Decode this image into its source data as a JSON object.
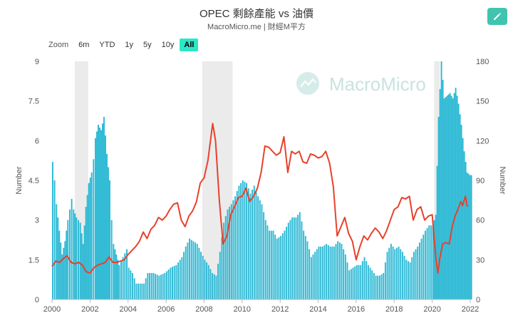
{
  "header": {
    "title": "OPEC 剩餘產能 vs 油價",
    "subtitle": "MacroMicro.me | 財經M平方"
  },
  "toolbar": {
    "zoom_label": "Zoom",
    "ranges": [
      "6m",
      "YTD",
      "1y",
      "5y",
      "10y",
      "All"
    ],
    "active_range": "All",
    "edit_icon": "pencil-icon"
  },
  "watermark": {
    "text": "MacroMicro",
    "icon": "macromicro-logo-icon"
  },
  "colors": {
    "bar": "#2ab8d4",
    "line": "#e8412c",
    "recession": "#ebebeb",
    "accent": "#40c4b0"
  },
  "chart_data": {
    "type": "bar+line",
    "title": "OPEC 剩餘產能 vs 油價",
    "x_ticks": [
      "2000",
      "2002",
      "2004",
      "2006",
      "2008",
      "2010",
      "2012",
      "2014",
      "2016",
      "2018",
      "2020",
      "2022"
    ],
    "x_range": [
      2000,
      2022
    ],
    "y_left": {
      "label": "Number",
      "range": [
        0,
        9
      ],
      "ticks": [
        "0",
        "1.5",
        "3",
        "4.5",
        "6",
        "7.5",
        "9"
      ]
    },
    "y_right": {
      "label": "Number",
      "range": [
        0,
        180
      ],
      "ticks": [
        "0",
        "30",
        "60",
        "90",
        "120",
        "150",
        "180"
      ]
    },
    "recession_shading": [
      [
        2001.2,
        2001.9
      ],
      [
        2007.9,
        2009.5
      ],
      [
        2020.1,
        2020.4
      ]
    ],
    "series": [
      {
        "axis": "left",
        "style": "bar",
        "points": [
          [
            2000.0,
            5.2
          ],
          [
            2000.1,
            4.5
          ],
          [
            2000.2,
            3.6
          ],
          [
            2000.35,
            2.6
          ],
          [
            2000.5,
            1.7
          ],
          [
            2000.65,
            2.2
          ],
          [
            2000.8,
            3.0
          ],
          [
            2001.0,
            3.8
          ],
          [
            2001.1,
            3.4
          ],
          [
            2001.25,
            3.1
          ],
          [
            2001.45,
            2.9
          ],
          [
            2001.6,
            2.1
          ],
          [
            2001.75,
            3.5
          ],
          [
            2001.9,
            4.4
          ],
          [
            2002.05,
            4.8
          ],
          [
            2002.15,
            5.3
          ],
          [
            2002.25,
            6.1
          ],
          [
            2002.4,
            6.6
          ],
          [
            2002.55,
            6.4
          ],
          [
            2002.7,
            6.9
          ],
          [
            2002.85,
            5.5
          ],
          [
            2003.0,
            4.5
          ],
          [
            2003.1,
            3.0
          ],
          [
            2003.2,
            2.1
          ],
          [
            2003.35,
            1.7
          ],
          [
            2003.5,
            1.3
          ],
          [
            2003.7,
            1.6
          ],
          [
            2003.9,
            1.9
          ],
          [
            2004.0,
            1.2
          ],
          [
            2004.2,
            1.0
          ],
          [
            2004.4,
            0.6
          ],
          [
            2004.6,
            0.6
          ],
          [
            2004.8,
            0.6
          ],
          [
            2005.0,
            1.0
          ],
          [
            2005.3,
            1.0
          ],
          [
            2005.6,
            0.9
          ],
          [
            2005.9,
            1.0
          ],
          [
            2006.2,
            1.2
          ],
          [
            2006.5,
            1.3
          ],
          [
            2006.8,
            1.6
          ],
          [
            2007.0,
            2.0
          ],
          [
            2007.2,
            2.3
          ],
          [
            2007.4,
            2.2
          ],
          [
            2007.6,
            2.1
          ],
          [
            2007.8,
            1.8
          ],
          [
            2008.0,
            1.5
          ],
          [
            2008.2,
            1.3
          ],
          [
            2008.4,
            1.0
          ],
          [
            2008.6,
            0.9
          ],
          [
            2008.8,
            1.8
          ],
          [
            2009.0,
            2.9
          ],
          [
            2009.2,
            3.4
          ],
          [
            2009.4,
            3.6
          ],
          [
            2009.6,
            3.9
          ],
          [
            2009.8,
            4.3
          ],
          [
            2010.0,
            4.5
          ],
          [
            2010.2,
            4.4
          ],
          [
            2010.4,
            4.0
          ],
          [
            2010.6,
            4.3
          ],
          [
            2010.8,
            3.9
          ],
          [
            2011.0,
            3.6
          ],
          [
            2011.2,
            3.0
          ],
          [
            2011.4,
            2.6
          ],
          [
            2011.6,
            2.6
          ],
          [
            2011.8,
            2.3
          ],
          [
            2012.0,
            2.4
          ],
          [
            2012.2,
            2.6
          ],
          [
            2012.4,
            2.9
          ],
          [
            2012.6,
            3.1
          ],
          [
            2012.8,
            3.1
          ],
          [
            2013.0,
            3.3
          ],
          [
            2013.2,
            2.6
          ],
          [
            2013.4,
            2.2
          ],
          [
            2013.6,
            1.6
          ],
          [
            2013.8,
            1.8
          ],
          [
            2014.0,
            2.0
          ],
          [
            2014.2,
            2.0
          ],
          [
            2014.4,
            2.1
          ],
          [
            2014.6,
            2.0
          ],
          [
            2014.8,
            2.0
          ],
          [
            2015.0,
            2.2
          ],
          [
            2015.2,
            2.1
          ],
          [
            2015.4,
            1.7
          ],
          [
            2015.6,
            1.1
          ],
          [
            2015.8,
            1.2
          ],
          [
            2016.0,
            1.3
          ],
          [
            2016.2,
            1.3
          ],
          [
            2016.4,
            1.6
          ],
          [
            2016.6,
            1.3
          ],
          [
            2016.8,
            1.1
          ],
          [
            2017.0,
            0.9
          ],
          [
            2017.2,
            0.9
          ],
          [
            2017.4,
            1.0
          ],
          [
            2017.6,
            1.8
          ],
          [
            2017.8,
            2.1
          ],
          [
            2018.0,
            1.9
          ],
          [
            2018.2,
            2.0
          ],
          [
            2018.4,
            1.8
          ],
          [
            2018.6,
            1.5
          ],
          [
            2018.8,
            1.4
          ],
          [
            2019.0,
            1.8
          ],
          [
            2019.2,
            2.0
          ],
          [
            2019.4,
            2.3
          ],
          [
            2019.6,
            2.6
          ],
          [
            2019.8,
            2.8
          ],
          [
            2020.0,
            2.8
          ],
          [
            2020.15,
            3.2
          ],
          [
            2020.3,
            6.9
          ],
          [
            2020.45,
            9.0
          ],
          [
            2020.6,
            7.6
          ],
          [
            2020.75,
            7.7
          ],
          [
            2020.9,
            7.8
          ],
          [
            2021.05,
            7.6
          ],
          [
            2021.2,
            8.0
          ],
          [
            2021.35,
            7.4
          ],
          [
            2021.5,
            6.6
          ],
          [
            2021.65,
            5.6
          ],
          [
            2021.8,
            4.8
          ],
          [
            2021.95,
            4.7
          ]
        ]
      },
      {
        "axis": "right",
        "style": "line",
        "points": [
          [
            2000.0,
            25
          ],
          [
            2000.2,
            29
          ],
          [
            2000.4,
            28
          ],
          [
            2000.6,
            31
          ],
          [
            2000.8,
            33
          ],
          [
            2001.0,
            28
          ],
          [
            2001.2,
            27
          ],
          [
            2001.4,
            28
          ],
          [
            2001.6,
            26
          ],
          [
            2001.8,
            21
          ],
          [
            2002.0,
            20
          ],
          [
            2002.2,
            24
          ],
          [
            2002.4,
            26
          ],
          [
            2002.6,
            27
          ],
          [
            2002.8,
            28
          ],
          [
            2003.0,
            32
          ],
          [
            2003.2,
            28
          ],
          [
            2003.4,
            28
          ],
          [
            2003.6,
            29
          ],
          [
            2003.8,
            30
          ],
          [
            2004.0,
            34
          ],
          [
            2004.2,
            37
          ],
          [
            2004.4,
            40
          ],
          [
            2004.6,
            44
          ],
          [
            2004.8,
            51
          ],
          [
            2005.0,
            46
          ],
          [
            2005.2,
            53
          ],
          [
            2005.4,
            56
          ],
          [
            2005.6,
            62
          ],
          [
            2005.8,
            60
          ],
          [
            2006.0,
            63
          ],
          [
            2006.2,
            68
          ],
          [
            2006.4,
            72
          ],
          [
            2006.6,
            73
          ],
          [
            2006.8,
            60
          ],
          [
            2007.0,
            55
          ],
          [
            2007.2,
            63
          ],
          [
            2007.4,
            67
          ],
          [
            2007.6,
            74
          ],
          [
            2007.8,
            88
          ],
          [
            2008.0,
            92
          ],
          [
            2008.2,
            105
          ],
          [
            2008.45,
            133
          ],
          [
            2008.6,
            120
          ],
          [
            2008.8,
            75
          ],
          [
            2009.0,
            42
          ],
          [
            2009.2,
            48
          ],
          [
            2009.4,
            64
          ],
          [
            2009.6,
            70
          ],
          [
            2009.8,
            77
          ],
          [
            2010.0,
            78
          ],
          [
            2010.2,
            84
          ],
          [
            2010.4,
            74
          ],
          [
            2010.6,
            78
          ],
          [
            2010.8,
            84
          ],
          [
            2011.0,
            96
          ],
          [
            2011.2,
            116
          ],
          [
            2011.4,
            115
          ],
          [
            2011.6,
            112
          ],
          [
            2011.8,
            109
          ],
          [
            2012.0,
            111
          ],
          [
            2012.2,
            123
          ],
          [
            2012.4,
            96
          ],
          [
            2012.6,
            112
          ],
          [
            2012.8,
            110
          ],
          [
            2013.0,
            112
          ],
          [
            2013.2,
            104
          ],
          [
            2013.4,
            103
          ],
          [
            2013.6,
            110
          ],
          [
            2013.8,
            109
          ],
          [
            2014.0,
            107
          ],
          [
            2014.2,
            108
          ],
          [
            2014.4,
            112
          ],
          [
            2014.6,
            103
          ],
          [
            2014.8,
            85
          ],
          [
            2015.0,
            48
          ],
          [
            2015.2,
            55
          ],
          [
            2015.4,
            62
          ],
          [
            2015.6,
            50
          ],
          [
            2015.8,
            44
          ],
          [
            2016.0,
            30
          ],
          [
            2016.2,
            40
          ],
          [
            2016.4,
            48
          ],
          [
            2016.6,
            45
          ],
          [
            2016.8,
            50
          ],
          [
            2017.0,
            54
          ],
          [
            2017.2,
            51
          ],
          [
            2017.4,
            46
          ],
          [
            2017.6,
            52
          ],
          [
            2017.8,
            60
          ],
          [
            2018.0,
            68
          ],
          [
            2018.2,
            70
          ],
          [
            2018.4,
            77
          ],
          [
            2018.6,
            76
          ],
          [
            2018.8,
            78
          ],
          [
            2019.0,
            60
          ],
          [
            2019.2,
            68
          ],
          [
            2019.4,
            70
          ],
          [
            2019.6,
            60
          ],
          [
            2019.8,
            63
          ],
          [
            2020.0,
            64
          ],
          [
            2020.2,
            30
          ],
          [
            2020.3,
            20
          ],
          [
            2020.4,
            31
          ],
          [
            2020.55,
            42
          ],
          [
            2020.7,
            43
          ],
          [
            2020.9,
            42
          ],
          [
            2021.05,
            55
          ],
          [
            2021.2,
            63
          ],
          [
            2021.35,
            68
          ],
          [
            2021.5,
            74
          ],
          [
            2021.6,
            71
          ],
          [
            2021.75,
            78
          ],
          [
            2021.85,
            70
          ]
        ]
      }
    ]
  }
}
